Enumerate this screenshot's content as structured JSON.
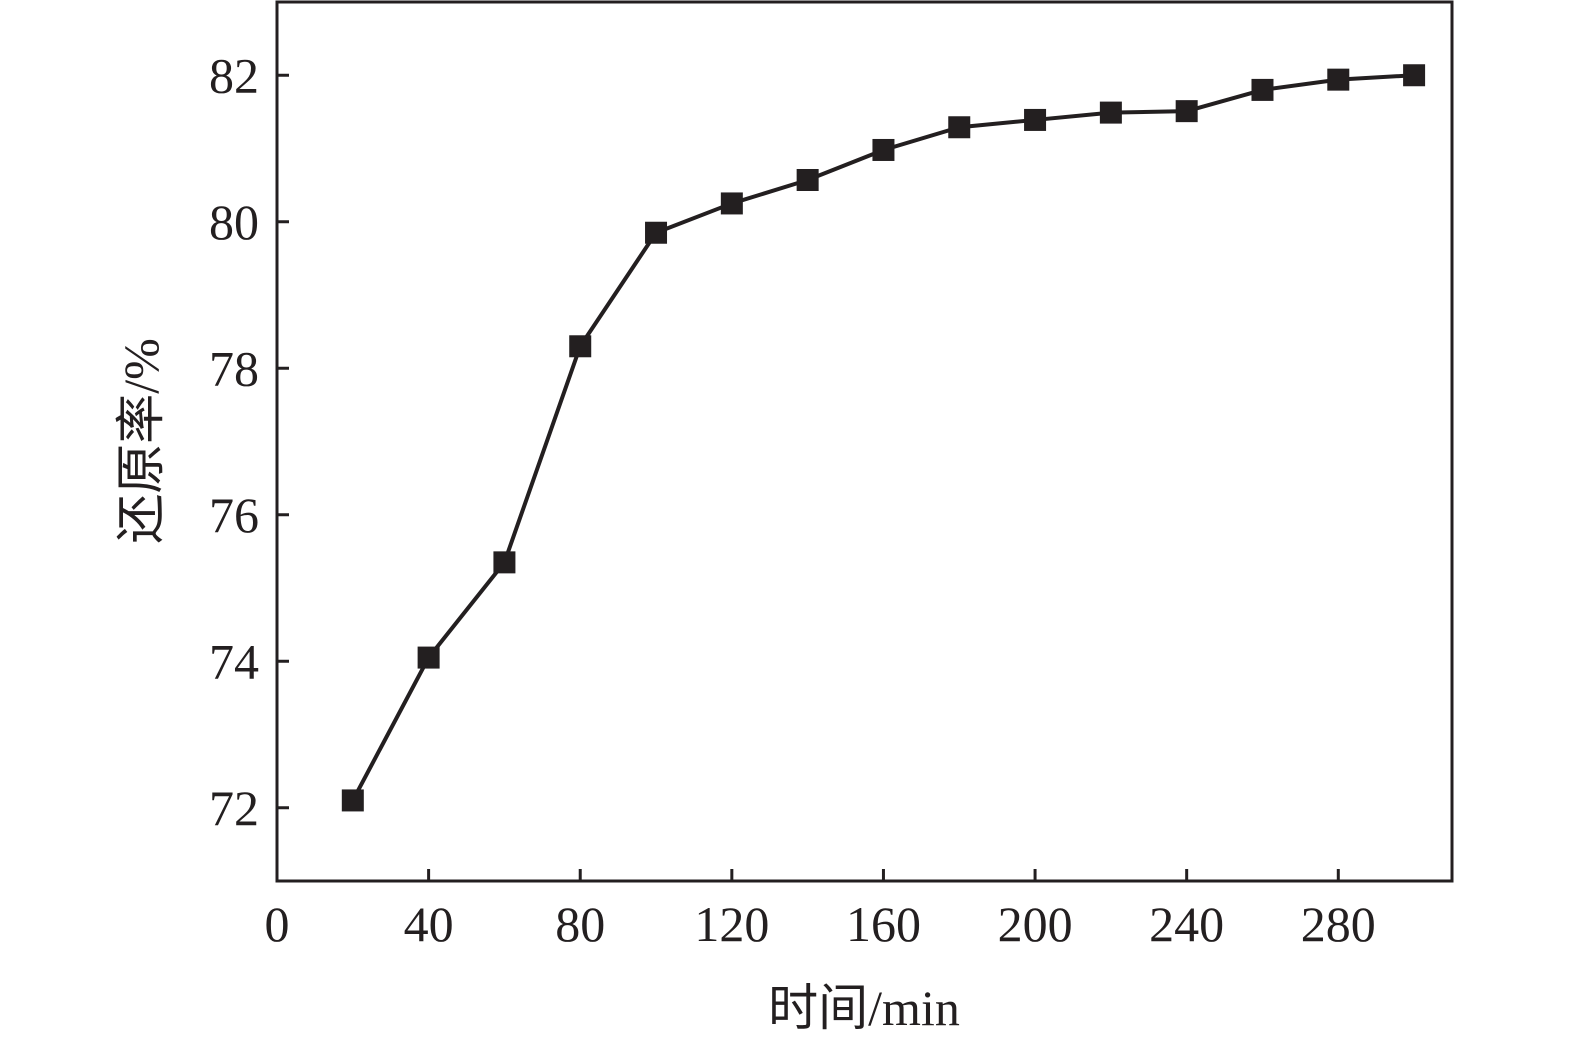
{
  "chart_data": {
    "type": "line",
    "xlabel": "时间/min",
    "ylabel": "还原率/%",
    "xlim": [
      0,
      310
    ],
    "ylim": [
      71,
      83
    ],
    "xticks": [
      0,
      40,
      80,
      120,
      160,
      200,
      240,
      280
    ],
    "yticks": [
      72,
      74,
      76,
      78,
      80,
      82
    ],
    "xtick_labels": [
      "0",
      "40",
      "80",
      "120",
      "160",
      "200",
      "240",
      "280"
    ],
    "ytick_labels": [
      "72",
      "74",
      "76",
      "78",
      "80",
      "82"
    ],
    "grid": false,
    "series": [
      {
        "marker": "square",
        "color": "#231f20",
        "x": [
          20,
          40,
          60,
          80,
          100,
          120,
          140,
          160,
          180,
          200,
          220,
          240,
          260,
          280,
          300
        ],
        "y": [
          72.1,
          74.05,
          75.35,
          78.3,
          79.85,
          80.25,
          80.57,
          80.98,
          81.29,
          81.39,
          81.49,
          81.51,
          81.8,
          81.94,
          82.0
        ]
      }
    ]
  }
}
